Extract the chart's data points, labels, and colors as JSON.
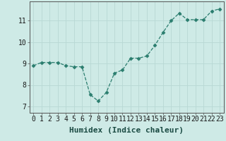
{
  "x": [
    0,
    1,
    2,
    3,
    4,
    5,
    6,
    7,
    8,
    9,
    10,
    11,
    12,
    13,
    14,
    15,
    16,
    17,
    18,
    19,
    20,
    21,
    22,
    23
  ],
  "y": [
    8.9,
    9.05,
    9.05,
    9.05,
    8.9,
    8.85,
    8.85,
    7.55,
    7.25,
    7.65,
    8.55,
    8.7,
    9.25,
    9.25,
    9.35,
    9.85,
    10.45,
    11.0,
    11.35,
    11.05,
    11.05,
    11.05,
    11.45,
    11.55
  ],
  "xlabel": "Humidex (Indice chaleur)",
  "xlim": [
    -0.5,
    23.5
  ],
  "ylim": [
    6.7,
    11.9
  ],
  "yticks": [
    7,
    8,
    9,
    10,
    11
  ],
  "xticks": [
    0,
    1,
    2,
    3,
    4,
    5,
    6,
    7,
    8,
    9,
    10,
    11,
    12,
    13,
    14,
    15,
    16,
    17,
    18,
    19,
    20,
    21,
    22,
    23
  ],
  "line_color": "#2a7d6e",
  "marker": "D",
  "marker_size": 2.5,
  "bg_color": "#ceeae6",
  "grid_color": "#b8d8d4",
  "xlabel_fontsize": 8,
  "tick_fontsize": 7,
  "spine_color": "#555555"
}
